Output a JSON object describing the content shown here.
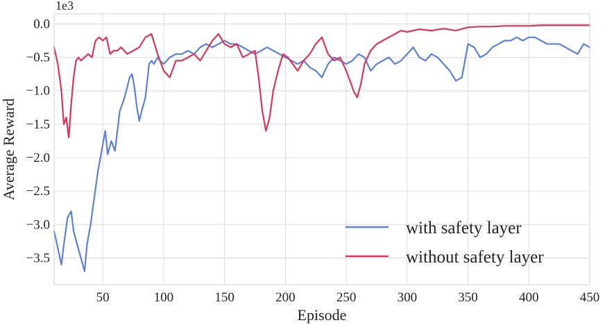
{
  "chart_data": {
    "type": "line",
    "xlabel": "Episode",
    "ylabel": "Average Reward",
    "y_offset_label": "1e3",
    "xlim": [
      10,
      450
    ],
    "ylim": [
      -3.9,
      0.15
    ],
    "xticks": [
      50,
      100,
      150,
      200,
      250,
      300,
      350,
      400,
      450
    ],
    "yticks": [
      0.0,
      -0.5,
      -1.0,
      -1.5,
      -2.0,
      -2.5,
      -3.0,
      -3.5
    ],
    "xtick_labels": [
      "50",
      "100",
      "150",
      "200",
      "250",
      "300",
      "350",
      "400",
      "450"
    ],
    "ytick_labels": [
      "0.0",
      "−0.5",
      "−1.0",
      "−1.5",
      "−2.0",
      "−2.5",
      "−3.0",
      "−3.5"
    ],
    "grid": true,
    "legend": "lower-right",
    "series": [
      {
        "name": "with safety layer",
        "color": "#5b7fdc",
        "x": [
          10,
          13,
          16,
          18,
          21,
          24,
          26,
          29,
          32,
          35,
          37,
          40,
          43,
          46,
          48,
          50,
          52,
          54,
          57,
          60,
          62,
          64,
          67,
          70,
          72,
          74,
          76,
          78,
          80,
          82,
          85,
          88,
          90,
          92,
          95,
          97,
          100,
          105,
          110,
          115,
          120,
          125,
          130,
          135,
          140,
          145,
          150,
          155,
          160,
          165,
          170,
          175,
          180,
          185,
          190,
          195,
          200,
          205,
          210,
          215,
          220,
          225,
          230,
          235,
          240,
          245,
          250,
          255,
          260,
          265,
          270,
          275,
          280,
          285,
          290,
          295,
          300,
          305,
          310,
          315,
          320,
          325,
          330,
          335,
          340,
          345,
          350,
          355,
          360,
          365,
          370,
          375,
          380,
          385,
          390,
          395,
          400,
          405,
          410,
          415,
          420,
          425,
          430,
          435,
          440,
          445,
          450
        ],
        "values": [
          -3.1,
          -3.35,
          -3.6,
          -3.3,
          -2.9,
          -2.8,
          -3.1,
          -3.3,
          -3.5,
          -3.7,
          -3.3,
          -3.0,
          -2.6,
          -2.2,
          -2.0,
          -1.8,
          -1.6,
          -1.95,
          -1.75,
          -1.9,
          -1.6,
          -1.3,
          -1.15,
          -0.95,
          -0.8,
          -0.75,
          -0.95,
          -1.25,
          -1.45,
          -1.3,
          -1.1,
          -0.6,
          -0.55,
          -0.6,
          -0.5,
          -0.55,
          -0.6,
          -0.5,
          -0.45,
          -0.45,
          -0.4,
          -0.45,
          -0.35,
          -0.3,
          -0.35,
          -0.3,
          -0.25,
          -0.3,
          -0.3,
          -0.35,
          -0.4,
          -0.45,
          -0.4,
          -0.35,
          -0.4,
          -0.45,
          -0.5,
          -0.55,
          -0.6,
          -0.55,
          -0.65,
          -0.7,
          -0.8,
          -0.6,
          -0.5,
          -0.55,
          -0.6,
          -0.55,
          -0.45,
          -0.5,
          -0.7,
          -0.6,
          -0.55,
          -0.5,
          -0.6,
          -0.55,
          -0.45,
          -0.35,
          -0.5,
          -0.55,
          -0.45,
          -0.5,
          -0.6,
          -0.7,
          -0.85,
          -0.8,
          -0.3,
          -0.35,
          -0.5,
          -0.45,
          -0.35,
          -0.3,
          -0.25,
          -0.25,
          -0.2,
          -0.25,
          -0.2,
          -0.2,
          -0.25,
          -0.3,
          -0.3,
          -0.3,
          -0.35,
          -0.4,
          -0.45,
          -0.3,
          -0.35
        ]
      },
      {
        "name": "without safety layer",
        "color": "#dc3455",
        "x": [
          10,
          13,
          16,
          18,
          20,
          22,
          24,
          26,
          28,
          30,
          32,
          35,
          38,
          41,
          44,
          47,
          50,
          53,
          56,
          59,
          62,
          65,
          70,
          75,
          80,
          85,
          90,
          95,
          100,
          105,
          110,
          115,
          120,
          125,
          130,
          135,
          140,
          145,
          150,
          155,
          160,
          165,
          170,
          175,
          178,
          181,
          184,
          187,
          190,
          194,
          198,
          202,
          206,
          210,
          215,
          220,
          225,
          230,
          235,
          240,
          245,
          250,
          253,
          256,
          259,
          262,
          265,
          270,
          275,
          280,
          285,
          290,
          295,
          300,
          310,
          320,
          330,
          340,
          350,
          360,
          370,
          380,
          390,
          400,
          410,
          420,
          430,
          440,
          450
        ],
        "values": [
          -0.35,
          -0.6,
          -1.0,
          -1.5,
          -1.4,
          -1.7,
          -1.2,
          -0.8,
          -0.55,
          -0.5,
          -0.55,
          -0.5,
          -0.45,
          -0.5,
          -0.25,
          -0.2,
          -0.25,
          -0.2,
          -0.45,
          -0.4,
          -0.4,
          -0.35,
          -0.45,
          -0.4,
          -0.35,
          -0.2,
          -0.15,
          -0.45,
          -0.7,
          -0.8,
          -0.55,
          -0.55,
          -0.5,
          -0.45,
          -0.55,
          -0.4,
          -0.25,
          -0.15,
          -0.3,
          -0.35,
          -0.3,
          -0.5,
          -0.45,
          -0.4,
          -0.8,
          -1.3,
          -1.6,
          -1.4,
          -1.0,
          -0.7,
          -0.45,
          -0.5,
          -0.6,
          -0.7,
          -0.55,
          -0.45,
          -0.3,
          -0.2,
          -0.45,
          -0.55,
          -0.5,
          -0.7,
          -0.85,
          -1.0,
          -1.1,
          -0.9,
          -0.6,
          -0.4,
          -0.3,
          -0.25,
          -0.2,
          -0.15,
          -0.1,
          -0.12,
          -0.08,
          -0.1,
          -0.07,
          -0.1,
          -0.05,
          -0.04,
          -0.04,
          -0.03,
          -0.03,
          -0.03,
          -0.02,
          -0.02,
          -0.02,
          -0.02,
          -0.02
        ]
      }
    ]
  }
}
